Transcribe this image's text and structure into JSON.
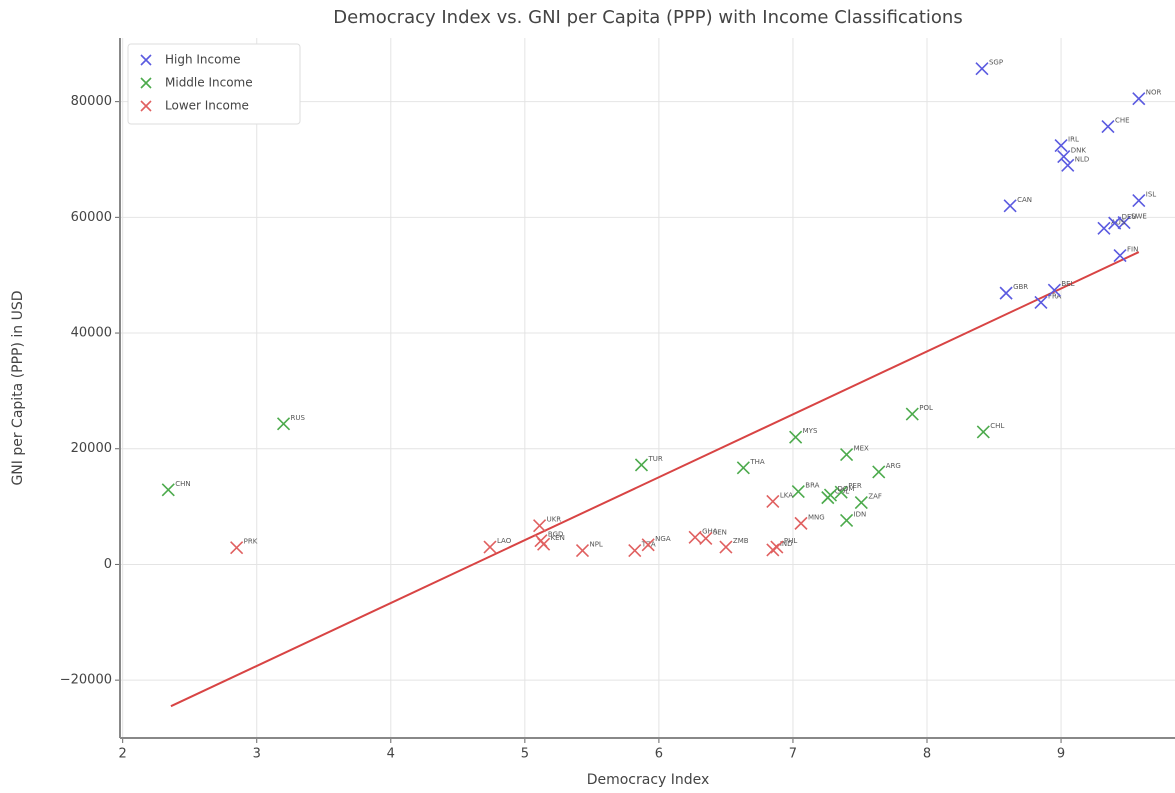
{
  "chart_data": {
    "type": "scatter",
    "title": "Democracy Index vs. GNI per Capita (PPP) with Income Classifications",
    "x_label": "Democracy Index",
    "y_label": "GNI per Capita (PPP) in USD",
    "xlim": [
      1.98,
      9.85
    ],
    "ylim": [
      -30000,
      91000
    ],
    "xticks": [
      2,
      3,
      4,
      5,
      6,
      7,
      8,
      9
    ],
    "yticks": [
      {
        "value": -20000,
        "label": "−20000"
      },
      0,
      20000,
      40000,
      60000,
      80000
    ],
    "grid": true,
    "legend": "upper left",
    "series": [
      {
        "name": "High Income",
        "color": "#5a5ae0",
        "x": [
          8.41,
          9.58,
          9.35,
          9.0,
          9.02,
          9.05,
          9.58,
          8.62,
          9.47,
          9.32,
          9.4,
          9.44,
          8.59,
          8.85,
          8.95
        ],
        "values": [
          85700,
          80500,
          75700,
          72400,
          70500,
          69000,
          62900,
          62000,
          59100,
          58100,
          59000,
          53400,
          46900,
          45300,
          47400
        ],
        "labels": [
          "SGP",
          "NOR",
          "CHE",
          "IRL",
          "DNK",
          "NLD",
          "ISL",
          "CAN",
          "SWE",
          "AUS",
          "DEU",
          "FIN",
          "GBR",
          "FRA",
          "BEL"
        ]
      },
      {
        "name": "Middle Income",
        "color": "#4caa4c",
        "x": [
          2.34,
          3.2,
          5.87,
          6.63,
          7.02,
          7.4,
          7.89,
          8.42,
          7.64,
          7.04,
          7.26,
          7.36,
          7.51,
          7.4,
          7.28
        ],
        "values": [
          12900,
          24300,
          17200,
          16700,
          22000,
          19000,
          26000,
          22900,
          16000,
          12600,
          11550,
          12500,
          10700,
          7600,
          12000
        ],
        "labels": [
          "CHN",
          "RUS",
          "TUR",
          "THA",
          "MYS",
          "MEX",
          "POL",
          "CHL",
          "ARG",
          "BRA",
          "COL",
          "PER",
          "ZAF",
          "IDN",
          "DOM"
        ]
      },
      {
        "name": "Lower Income",
        "color": "#e06060",
        "x": [
          2.85,
          4.74,
          5.11,
          5.12,
          5.14,
          5.43,
          5.82,
          5.92,
          6.27,
          6.35,
          6.5,
          6.85,
          6.85,
          6.88,
          7.06
        ],
        "values": [
          2900,
          3000,
          6700,
          4100,
          3500,
          2400,
          2400,
          3400,
          4700,
          4500,
          3000,
          10900,
          2500,
          3000,
          7100
        ],
        "labels": [
          "PRK",
          "LAO",
          "UKR",
          "BGD",
          "KEN",
          "NPL",
          "TZA",
          "NGA",
          "GHA",
          "SEN",
          "ZMB",
          "LKA",
          "IND",
          "PHL",
          "MNG"
        ]
      }
    ],
    "trend": {
      "color": "#d84444",
      "x": [
        2.36,
        9.58
      ],
      "values": [
        -24500,
        54000
      ]
    }
  }
}
